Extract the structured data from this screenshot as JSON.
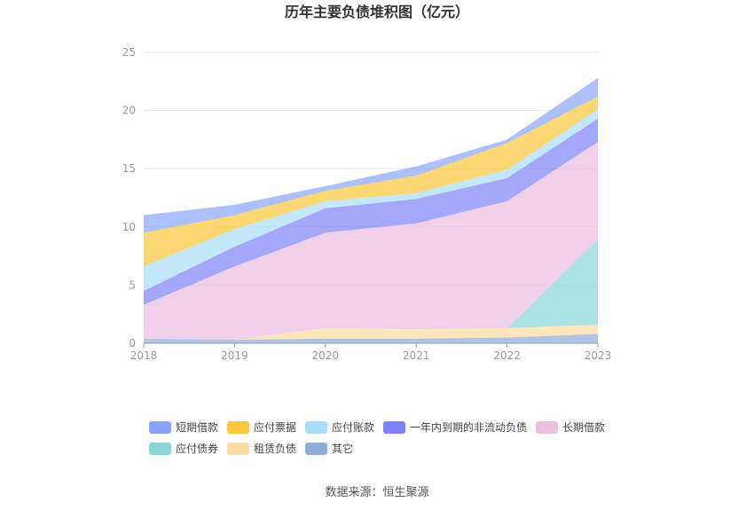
{
  "chart_data": {
    "type": "area",
    "stacked": true,
    "title": "历年主要负债堆积图（亿元）",
    "xlabel": "",
    "ylabel": "",
    "categories": [
      "2018",
      "2019",
      "2020",
      "2021",
      "2022",
      "2023"
    ],
    "ylim": [
      0,
      25
    ],
    "yticks": [
      0,
      5,
      10,
      15,
      20,
      25
    ],
    "grid": true,
    "legend_position": "bottom",
    "series": [
      {
        "name": "其它",
        "color": "#8fadd8",
        "values": [
          0.4,
          0.3,
          0.4,
          0.4,
          0.5,
          0.8
        ]
      },
      {
        "name": "租赁负债",
        "color": "#fcdca0",
        "values": [
          0.0,
          0.0,
          0.9,
          0.8,
          0.8,
          0.8
        ]
      },
      {
        "name": "应付债券",
        "color": "#8ad6d6",
        "values": [
          0.0,
          0.0,
          0.0,
          0.0,
          0.0,
          7.3
        ]
      },
      {
        "name": "长期借款",
        "color": "#ebbedf",
        "values": [
          2.9,
          6.3,
          8.2,
          9.1,
          10.9,
          8.4
        ]
      },
      {
        "name": "一年内到期的非流动负债",
        "color": "#7f83f7",
        "values": [
          1.2,
          1.7,
          2.1,
          2.1,
          2.0,
          2.0
        ]
      },
      {
        "name": "应付账款",
        "color": "#a8def8",
        "values": [
          2.1,
          1.5,
          0.6,
          0.5,
          0.7,
          0.8
        ]
      },
      {
        "name": "应付票据",
        "color": "#fbc73b",
        "values": [
          2.9,
          1.2,
          0.9,
          1.5,
          2.3,
          1.1
        ]
      },
      {
        "name": "短期借款",
        "color": "#8aa5f7",
        "values": [
          1.5,
          0.9,
          0.4,
          0.8,
          0.3,
          1.6
        ]
      }
    ],
    "legend_order": [
      "短期借款",
      "应付票据",
      "应付账款",
      "一年内到期的非流动负债",
      "长期借款",
      "应付债券",
      "租赁负债",
      "其它"
    ]
  },
  "footer": {
    "source": "数据来源：恒生聚源"
  }
}
